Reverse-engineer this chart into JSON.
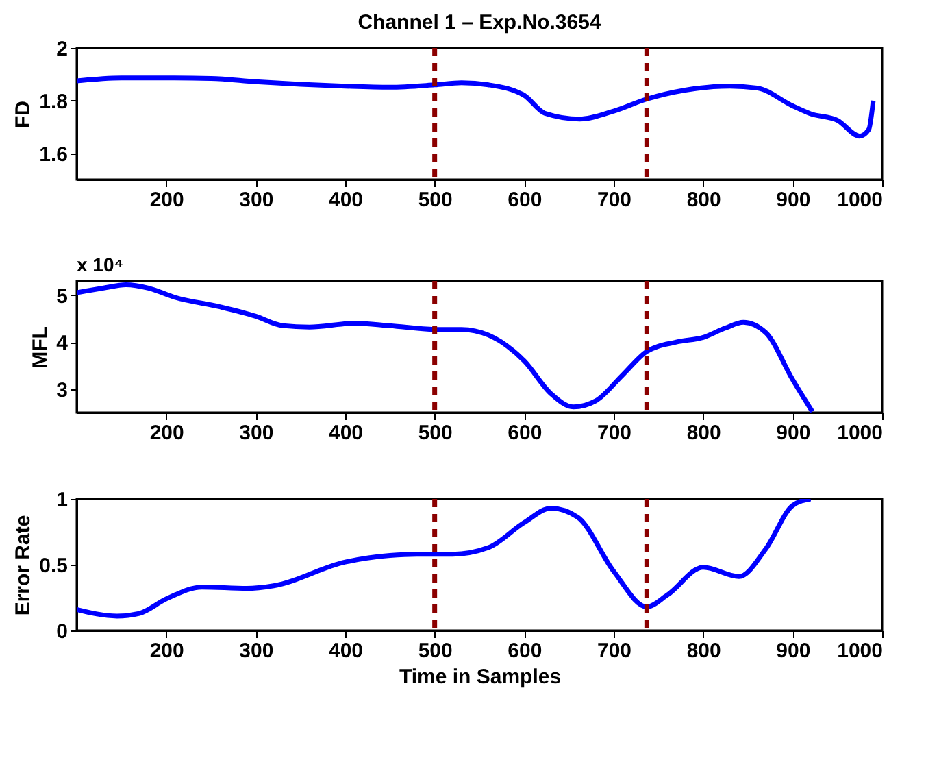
{
  "chart_data": [
    {
      "type": "line",
      "title": "Channel 1 – Exp.No.3654",
      "ylabel": "FD",
      "xlim": [
        100,
        1000
      ],
      "xticks": [
        200,
        300,
        400,
        500,
        600,
        700,
        800,
        900,
        1000
      ],
      "ylim": [
        1.5,
        2
      ],
      "yticks": [
        1.6,
        1.8,
        2
      ],
      "grid": false,
      "line_style": "solid",
      "x": [
        100,
        150,
        200,
        250,
        300,
        350,
        400,
        450,
        500,
        530,
        560,
        600,
        623,
        662,
        700,
        737,
        780,
        830,
        860,
        900,
        920,
        950,
        975,
        985,
        990
      ],
      "series": [
        {
          "color": "#0000ff",
          "values": [
            1.875,
            1.886,
            1.886,
            1.884,
            1.872,
            1.862,
            1.855,
            1.851,
            1.86,
            1.868,
            1.86,
            1.82,
            1.752,
            1.73,
            1.76,
            1.806,
            1.84,
            1.855,
            1.848,
            1.78,
            1.75,
            1.725,
            1.665,
            1.69,
            1.8
          ]
        }
      ],
      "ref_lines": [
        {
          "axis": "x",
          "value": 500,
          "color": "#8b0000",
          "line_style": "dashed"
        },
        {
          "axis": "x",
          "value": 737,
          "color": "#8b0000",
          "line_style": "dashed"
        }
      ]
    },
    {
      "type": "line",
      "ylabel": "MFL",
      "annotations": [
        "x 10⁴"
      ],
      "xlim": [
        100,
        1000
      ],
      "xticks": [
        200,
        300,
        400,
        500,
        600,
        700,
        800,
        900,
        1000
      ],
      "ylim": [
        2.5,
        5.3
      ],
      "yticks": [
        3,
        4,
        5
      ],
      "grid": false,
      "line_style": "solid",
      "x": [
        100,
        130,
        155,
        180,
        210,
        260,
        300,
        330,
        360,
        410,
        450,
        500,
        530,
        560,
        600,
        630,
        655,
        680,
        710,
        737,
        770,
        800,
        825,
        845,
        870,
        900,
        922
      ],
      "series": [
        {
          "color": "#0000ff",
          "values": [
            5.05,
            5.15,
            5.22,
            5.15,
            4.95,
            4.75,
            4.55,
            4.35,
            4.32,
            4.4,
            4.35,
            4.27,
            4.27,
            4.15,
            3.6,
            2.9,
            2.62,
            2.75,
            3.3,
            3.8,
            4.0,
            4.1,
            4.3,
            4.42,
            4.2,
            3.2,
            2.52
          ]
        }
      ],
      "ref_lines": [
        {
          "axis": "x",
          "value": 500,
          "color": "#8b0000",
          "line_style": "dashed"
        },
        {
          "axis": "x",
          "value": 737,
          "color": "#8b0000",
          "line_style": "dashed"
        }
      ]
    },
    {
      "type": "line",
      "ylabel": "Error Rate",
      "xlabel": "Time in Samples",
      "xlim": [
        100,
        1000
      ],
      "xticks": [
        200,
        300,
        400,
        500,
        600,
        700,
        800,
        900,
        1000
      ],
      "ylim": [
        0,
        1
      ],
      "yticks": [
        0,
        0.5,
        1
      ],
      "grid": false,
      "line_style": "solid",
      "x": [
        100,
        145,
        170,
        200,
        240,
        290,
        320,
        400,
        450,
        480,
        520,
        560,
        600,
        630,
        660,
        700,
        737,
        760,
        800,
        840,
        870,
        900,
        920
      ],
      "series": [
        {
          "color": "#0000ff",
          "values": [
            0.16,
            0.11,
            0.13,
            0.24,
            0.33,
            0.32,
            0.34,
            0.52,
            0.57,
            0.58,
            0.58,
            0.63,
            0.82,
            0.93,
            0.86,
            0.45,
            0.18,
            0.27,
            0.48,
            0.41,
            0.62,
            0.95,
            1.0
          ]
        }
      ],
      "ref_lines": [
        {
          "axis": "x",
          "value": 500,
          "color": "#8b0000",
          "line_style": "dashed"
        },
        {
          "axis": "x",
          "value": 737,
          "color": "#8b0000",
          "line_style": "dashed"
        }
      ]
    }
  ]
}
